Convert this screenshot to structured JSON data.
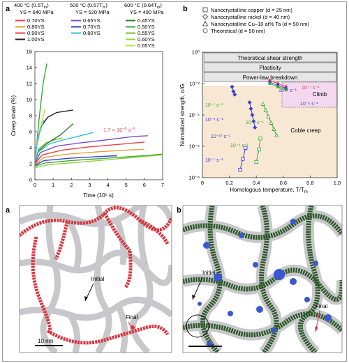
{
  "figure": {
    "panel_a_label": "a",
    "panel_b_label": "b",
    "panel_c_label": "a",
    "panel_d_label": "b"
  },
  "panel_a": {
    "groups": [
      {
        "temp": "400 °C (0.5T",
        "temp_sub": "m",
        "temp_close": ")",
        "ys": "YS = 640 MPa",
        "items": [
          {
            "label": "0.70YS",
            "color": "#e8414e"
          },
          {
            "label": "0.80YS",
            "color": "#e0a23a"
          },
          {
            "label": "0.90YS",
            "color": "#e8414e"
          },
          {
            "label": "1.00YS",
            "color": "#222222"
          }
        ]
      },
      {
        "temp": "500 °C (0.57T",
        "temp_sub": "m",
        "temp_close": ")",
        "ys": "YS = 520 MPa",
        "items": [
          {
            "label": "0.65YS",
            "color": "#7d4fd0"
          },
          {
            "label": "0.70YS",
            "color": "#3a3fd0"
          },
          {
            "label": "0.80YS",
            "color": "#2fc2d6"
          }
        ]
      },
      {
        "temp": "600 °C (0.64T",
        "temp_sub": "m",
        "temp_close": ")",
        "ys": "YS = 490 MPa",
        "items": [
          {
            "label": "0.45YS",
            "color": "#2d7a2d"
          },
          {
            "label": "0.50YS",
            "color": "#3aa83a"
          },
          {
            "label": "0.55YS",
            "color": "#6fbf2a"
          },
          {
            "label": "0.60YS",
            "color": "#96d23a"
          },
          {
            "label": "0.65YS",
            "color": "#b9e03f"
          }
        ]
      }
    ],
    "rate_annotation": "1.7 × 10",
    "rate_annotation_exp": "−6",
    "rate_annotation_unit": " s",
    "rate_annotation_unit_exp": "−1",
    "rate_color": "#e8414e"
  },
  "chart_data": [
    {
      "type": "line",
      "xlabel": "Time (10⁵ s)",
      "ylabel": "Creep strain (%)",
      "xlim": [
        0,
        7
      ],
      "ylim": [
        0,
        16
      ],
      "xticks": [
        "0",
        "1",
        "2",
        "3",
        "4",
        "5",
        "6",
        "7"
      ],
      "yticks": [
        "0",
        "2",
        "4",
        "6",
        "8",
        "10",
        "12",
        "14",
        "16"
      ],
      "series": [
        {
          "color": "#3aa83a",
          "points": [
            [
              0,
              2.3
            ],
            [
              0.1,
              4.5
            ],
            [
              0.25,
              8
            ],
            [
              0.45,
              12
            ],
            [
              0.65,
              14.5
            ]
          ]
        },
        {
          "color": "#222222",
          "points": [
            [
              0,
              2.2
            ],
            [
              0.1,
              4.5
            ],
            [
              0.3,
              6.5
            ],
            [
              0.7,
              7.8
            ],
            [
              1.2,
              8.4
            ],
            [
              2.1,
              8.7
            ]
          ]
        },
        {
          "color": "#b9e03f",
          "points": [
            [
              0,
              2.3
            ],
            [
              0.1,
              4.5
            ],
            [
              0.3,
              6.5
            ],
            [
              0.55,
              8.8
            ]
          ]
        },
        {
          "color": "#2fc2d6",
          "points": [
            [
              0,
              2.2
            ],
            [
              0.1,
              4.2
            ],
            [
              0.25,
              5.8
            ],
            [
              0.5,
              7.5
            ]
          ]
        },
        {
          "color": "#6fbf2a",
          "points": [
            [
              0,
              2.2
            ],
            [
              0.2,
              3.8
            ],
            [
              0.6,
              4.6
            ],
            [
              1.1,
              5.0
            ],
            [
              1.5,
              5.2
            ]
          ]
        },
        {
          "color": "#2d7a2d",
          "points": [
            [
              0,
              2.1
            ],
            [
              0.2,
              3.6
            ],
            [
              0.7,
              4.6
            ],
            [
              1.4,
              5.6
            ],
            [
              2.1,
              7.0
            ]
          ]
        },
        {
          "color": "#2fc2d6",
          "points": [
            [
              0,
              2.1
            ],
            [
              0.2,
              3.5
            ],
            [
              0.8,
              4.5
            ],
            [
              1.6,
              5.0
            ],
            [
              2.5,
              5.5
            ],
            [
              3.2,
              5.9
            ]
          ]
        },
        {
          "color": "#7d4fd0",
          "points": [
            [
              0,
              2.0
            ],
            [
              0.3,
              3.4
            ],
            [
              1.2,
              4.2
            ],
            [
              2.5,
              4.6
            ],
            [
              4.0,
              5.0
            ],
            [
              5.4,
              5.4
            ],
            [
              6.2,
              5.5
            ]
          ]
        },
        {
          "color": "#e8414e",
          "points": [
            [
              0,
              2.0
            ],
            [
              0.4,
              3.1
            ],
            [
              1.5,
              3.7
            ],
            [
              3.0,
              4.1
            ],
            [
              4.5,
              4.4
            ],
            [
              6.0,
              4.7
            ]
          ]
        },
        {
          "color": "#e0a23a",
          "points": [
            [
              0,
              1.9
            ],
            [
              0.5,
              2.8
            ],
            [
              1.8,
              3.2
            ],
            [
              3.5,
              3.5
            ],
            [
              5.0,
              3.7
            ],
            [
              6.0,
              3.8
            ]
          ]
        },
        {
          "color": "#3a3fd0",
          "points": [
            [
              0,
              1.8
            ],
            [
              0.5,
              2.4
            ],
            [
              2.0,
              2.7
            ],
            [
              3.5,
              2.9
            ],
            [
              4.5,
              3.0
            ]
          ]
        },
        {
          "color": "#3aa83a",
          "points": [
            [
              0,
              1.7
            ],
            [
              0.6,
              2.1
            ],
            [
              2.0,
              2.4
            ],
            [
              4.0,
              2.7
            ],
            [
              6.0,
              3.0
            ],
            [
              7.0,
              3.2
            ]
          ]
        },
        {
          "color": "#96d23a",
          "points": [
            [
              0,
              1.5
            ],
            [
              0.8,
              1.9
            ],
            [
              2.5,
              2.2
            ],
            [
              4.5,
              2.6
            ],
            [
              6.5,
              3.0
            ],
            [
              7.0,
              3.1
            ]
          ]
        }
      ]
    },
    {
      "type": "scatter",
      "xlabel": "Homologous temperature, T/T",
      "xlabel_sub": "m",
      "ylabel": "Normalized strength, σ/G",
      "xlim": [
        0,
        1.0
      ],
      "ylim_log10": [
        -8,
        0
      ],
      "xticks": [
        "0",
        "0.2",
        "0.4",
        "0.6",
        "0.8",
        "1.0"
      ],
      "yticks": [
        "10⁰",
        "10⁻²",
        "10⁻⁴",
        "10⁻⁶",
        "10⁻⁸"
      ],
      "legend": [
        {
          "marker": "square",
          "label": "Nanocrystalline copper (d = 25 nm)"
        },
        {
          "marker": "diamond",
          "label": "Nanocrystalline nickel (d = 40 nm)"
        },
        {
          "marker": "triangle",
          "label": "Nanocrystalline Cu–10 at% Ta (d = 50 nm)"
        },
        {
          "marker": "circle",
          "label": "Theoretical (d = 50 nm)"
        }
      ],
      "regions": [
        {
          "label": "Theoretical shear strength"
        },
        {
          "label": "Plasticity"
        },
        {
          "label": "Power-law breakdown"
        },
        {
          "label": "Climb"
        },
        {
          "label": "Coble creep"
        }
      ],
      "series": [
        {
          "name": "10⁻⁷ s⁻¹ (Cu)",
          "color": "#3a3fd0",
          "marker": "square",
          "points": [
            [
              0.28,
              -7.5
            ],
            [
              0.3,
              -6.8
            ],
            [
              0.32,
              -6.1
            ]
          ]
        },
        {
          "name": "10⁻⁹ s⁻¹ (Cu)",
          "color": "#3aa83a",
          "marker": "square",
          "points": [
            [
              0.4,
              -7.0
            ],
            [
              0.42,
              -6.2
            ],
            [
              0.43,
              -5.5
            ]
          ]
        },
        {
          "name": "10⁻¹⁰ s⁻¹",
          "color": "#3a3fd0",
          "marker": "diamond",
          "points": [
            [
              0.35,
              -3.2
            ],
            [
              0.36,
              -3.6
            ],
            [
              0.37,
              -4.0
            ],
            [
              0.38,
              -4.4
            ],
            [
              0.39,
              -4.8
            ]
          ]
        },
        {
          "name": "10⁻⁶ s⁻¹",
          "color": "#3aa83a",
          "marker": "triangle",
          "points": [
            [
              0.45,
              -3.3
            ],
            [
              0.47,
              -3.7
            ],
            [
              0.49,
              -4.1
            ],
            [
              0.51,
              -4.5
            ],
            [
              0.53,
              -4.9
            ],
            [
              0.55,
              -5.3
            ]
          ]
        },
        {
          "name": "10⁻⁸ s⁻¹",
          "color": "#3a3fd0",
          "marker": "diamond",
          "points": [
            [
              0.22,
              -2.2
            ],
            [
              0.23,
              -2.5
            ],
            [
              0.24,
              -2.7
            ]
          ]
        },
        {
          "name": "10⁻⁷ s⁻¹",
          "color": "#e8414e",
          "marker": "circle",
          "points": [
            [
              0.5,
              -1.8
            ],
            [
              0.56,
              -2.0
            ],
            [
              0.62,
              -2.2
            ]
          ]
        },
        {
          "name": "10⁻⁹ s⁻¹",
          "color": "#3a3fd0",
          "marker": "circle",
          "points": [
            [
              0.5,
              -1.9
            ],
            [
              0.56,
              -2.1
            ],
            [
              0.62,
              -2.3
            ]
          ]
        },
        {
          "name": "10⁻⁶ s⁻¹",
          "color": "#3aa83a",
          "marker": "circle",
          "points": [
            [
              0.5,
              -2.0
            ],
            [
              0.56,
              -2.2
            ],
            [
              0.62,
              -2.4
            ]
          ]
        }
      ],
      "rate_labels": [
        {
          "text": "10⁻⁷ s⁻¹",
          "color": "#3aa83a"
        },
        {
          "text": "10⁻⁸ s⁻¹",
          "color": "#3a3fd0"
        },
        {
          "text": "10⁻¹⁰ s⁻¹",
          "color": "#3a3fd0"
        },
        {
          "text": "10⁻⁹ s⁻¹",
          "color": "#3aa83a"
        },
        {
          "text": "10⁻⁶ s⁻¹",
          "color": "#3aa83a"
        },
        {
          "text": "10⁻⁷ s⁻¹",
          "color": "#3a3fd0"
        },
        {
          "text": "10⁻⁹ s⁻¹",
          "color": "#3a3fd0"
        },
        {
          "text": "10⁻⁷ s⁻¹",
          "color": "#e8414e"
        },
        {
          "text": "10⁻⁶ s⁻¹",
          "color": "#3a3fd0"
        }
      ]
    }
  ],
  "panel_c": {
    "initial_label": "Initial",
    "final_label": "Final",
    "scale_label": "10 nm",
    "boundary_color": "#d9353f"
  },
  "panel_d": {
    "initial_label": "Initial",
    "final_label": "Final",
    "boundary_color": "#2f5a2a",
    "precipitate_color": "#3b57d0"
  }
}
